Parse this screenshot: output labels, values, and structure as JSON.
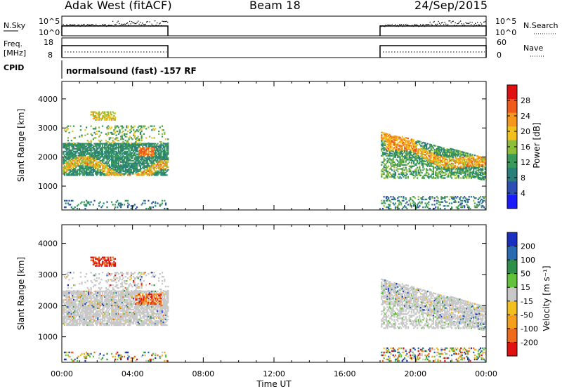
{
  "header": {
    "station": "Adak West (fitACF)",
    "beam": "Beam 18",
    "date": "24/Sep/2015"
  },
  "panels": {
    "nsky_label": "N.Sky",
    "nsearch_label": "N.Search",
    "nsky_ticks": [
      "10^5",
      "10^0"
    ],
    "nsearch_ticks": [
      "10^5",
      "10^0"
    ],
    "freq_label": "Freq.",
    "freq_unit": "[MHz]",
    "freq_ticks": [
      "18",
      "8"
    ],
    "nave_label": "Nave",
    "nave_ticks": [
      "60",
      "0"
    ],
    "cpid_label": "CPID",
    "cpid_text": "normalsound (fast) -157 RF"
  },
  "chart_data": [
    {
      "type": "heatmap",
      "title": "",
      "xlabel": "Time UT",
      "ylabel": "Slant Range [km]",
      "x_ticks": [
        "00:00",
        "04:00",
        "08:00",
        "12:00",
        "16:00",
        "20:00",
        "00:00"
      ],
      "y_ticks": [
        1000,
        2000,
        3000,
        4000
      ],
      "xlim_hours": [
        0,
        24
      ],
      "ylim": [
        180,
        4600
      ],
      "colorbar": {
        "label": "Power [dB]",
        "ticks": [
          4,
          8,
          12,
          16,
          20,
          24,
          28
        ],
        "range": [
          0,
          32
        ],
        "colors": [
          "#1a1aff",
          "#2d4fb3",
          "#2a7f7a",
          "#3a9a5a",
          "#8dbd3a",
          "#f2c01e",
          "#f5971d",
          "#ee5a1c",
          "#e01010"
        ]
      },
      "data_windows_hours": [
        [
          0,
          6
        ],
        [
          18,
          24
        ]
      ]
    },
    {
      "type": "heatmap",
      "title": "",
      "xlabel": "Time UT",
      "ylabel": "Slant Range [km]",
      "x_ticks": [
        "00:00",
        "04:00",
        "08:00",
        "12:00",
        "16:00",
        "20:00",
        "00:00"
      ],
      "y_ticks": [
        1000,
        2000,
        3000,
        4000
      ],
      "xlim_hours": [
        0,
        24
      ],
      "ylim": [
        180,
        4600
      ],
      "colorbar": {
        "label": "Velocity [m s⁻¹]",
        "ticks": [
          200,
          100,
          50,
          15,
          -15,
          -50,
          -100,
          -200
        ],
        "colors": [
          "#1a2fc0",
          "#2a6ab0",
          "#2e8f4a",
          "#62c23a",
          "#c8c8c8",
          "#f2c01e",
          "#f5a01d",
          "#ee6a1c",
          "#e01010"
        ]
      },
      "data_windows_hours": [
        [
          0,
          6
        ],
        [
          18,
          24
        ]
      ]
    }
  ]
}
